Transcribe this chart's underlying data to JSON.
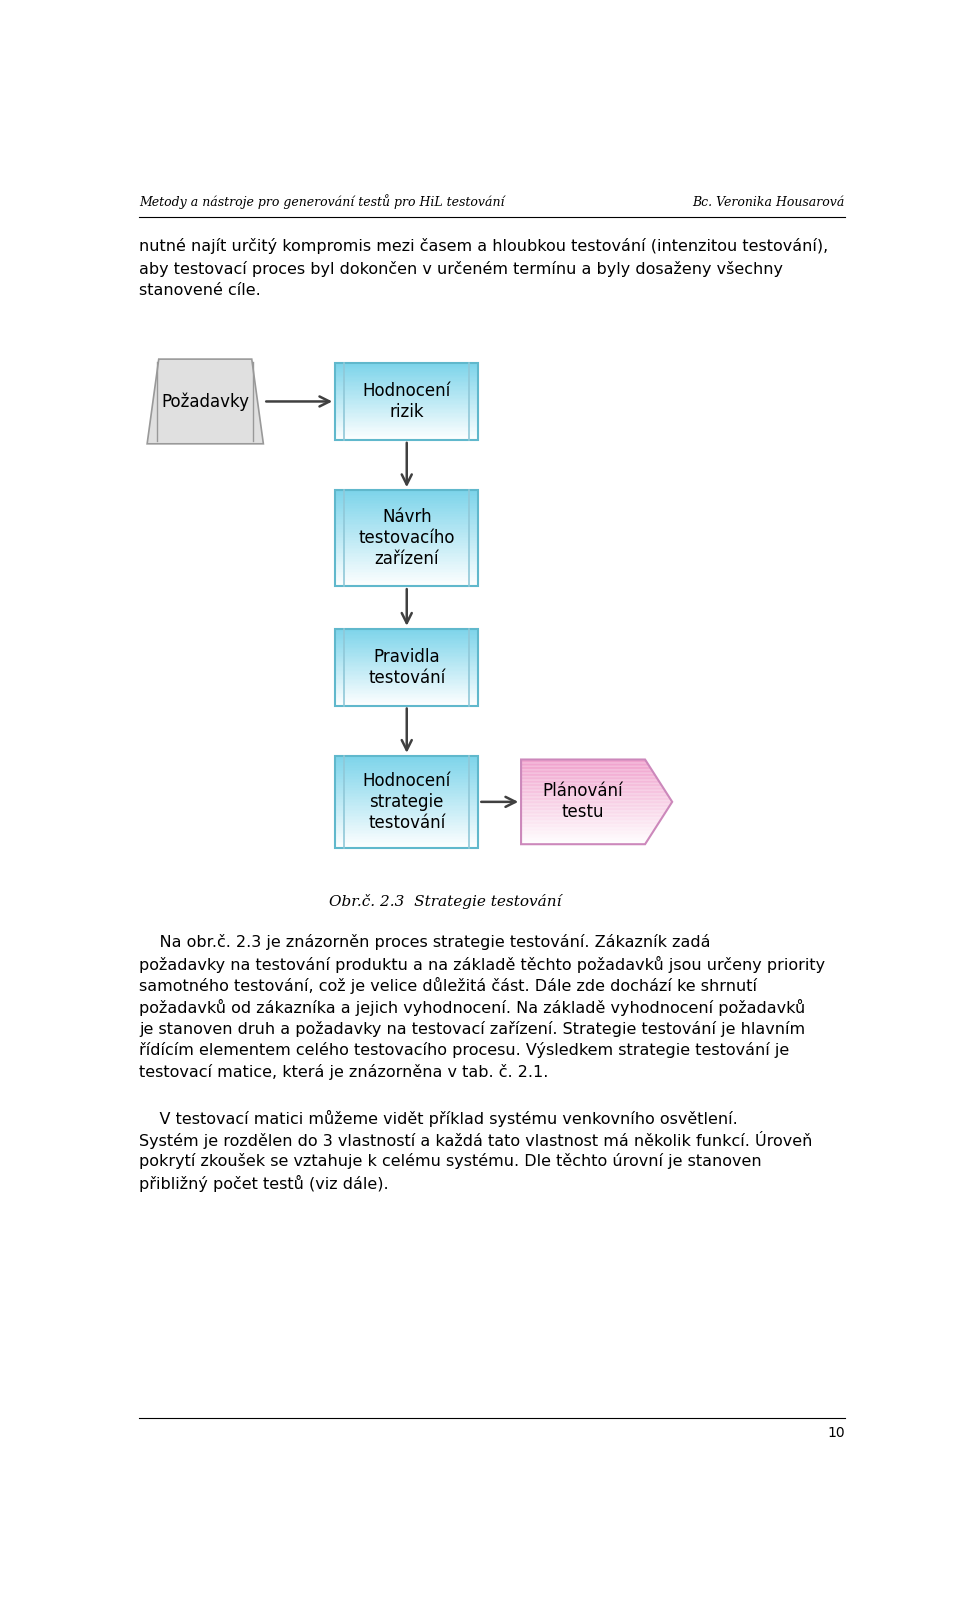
{
  "header_left": "Metody a nástroje pro generování testů pro HiL testování",
  "header_right": "Bc. Veronika Housarová",
  "page_number": "10",
  "intro_line1": "nutné najít určitý kompromis mezi časem a hloubkou testování (intenzitou testování),",
  "intro_line2": "aby testovací proces byl dokončen v určeném termínu a byly dosaženy všechny",
  "intro_line3": "stanovené cíle.",
  "box1_label": "Požadavky",
  "box2_label": "Hodnocení\nrizik",
  "box3_label": "Návrh\ntestovacího\nzařízení",
  "box4_label": "Pravidla\ntestování",
  "box5_label": "Hodnocení\nstrategie\ntestování",
  "box6_label": "Plánování\ntestu",
  "figure_caption": "Obr.č. 2.3  Strategie testování",
  "body1_line1": "    Na obr.č. 2.3 je znázorněn proces strategie testování. Zákazník zadá",
  "body1_line2": "požadavky na testování produktu a na základě těchto požadavků jsou určeny priority",
  "body1_line3": "samotného testování, což je velice důležitá část. Dále zde dochází ke shrnutí",
  "body1_line4": "požadavků od zákazníka a jejich vyhodnocení. Na základě vyhodnocení požadavků",
  "body1_line5": "je stanoven druh a požadavky na testovací zařízení. Strategie testování je hlavním",
  "body1_line6": "řídícím elementem celého testovacího procesu. Výsledkem strategie testování je",
  "body1_line7": "testovací matice, která je znázorněna v tab. č. 2.1.",
  "body2_line1": "    V testovací matici můžeme vidět příklad systému venkovního osvětlení.",
  "body2_line2": "Systém je rozdělen do 3 vlastností a každá tato vlastnost má několik funkcí. Úroveň",
  "body2_line3": "pokrytí zkoušek se vztahuje k celému systému. Dle těchto úrovní je stanoven",
  "body2_line4": "přibližný počet testů (viz dále).",
  "background_color": "#FFFFFF",
  "text_color": "#000000",
  "arrow_color": "#404040",
  "cyan_top": "#7DD4EA",
  "cyan_bottom": "#FFFFFF",
  "cyan_edge": "#60B8CC",
  "cyan_side_line": "#90C8D8",
  "gray_fill": "#E0E0E0",
  "gray_edge": "#999999",
  "pink_top": "#F0A0CC",
  "pink_bottom": "#FFFFFF",
  "pink_edge": "#CC88BB"
}
